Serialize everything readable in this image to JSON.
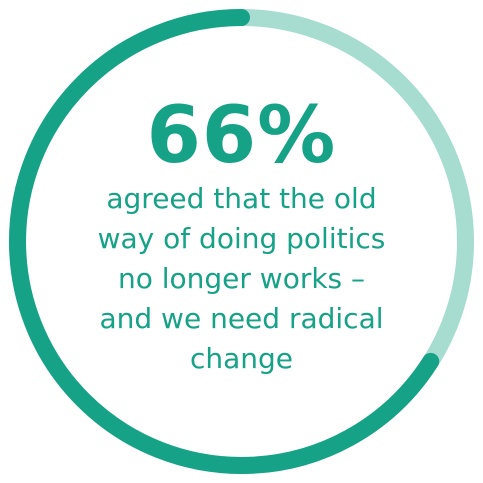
{
  "chart_data": {
    "type": "donut",
    "value": 66,
    "max": 100,
    "value_label": "66%",
    "caption_lines": [
      "agreed that the old",
      "way of doing politics",
      "no longer works –",
      "and we need radical",
      "change"
    ],
    "colors": {
      "filled": "#16a287",
      "remaining": "#a6ddd0",
      "text": "#16a287"
    }
  }
}
